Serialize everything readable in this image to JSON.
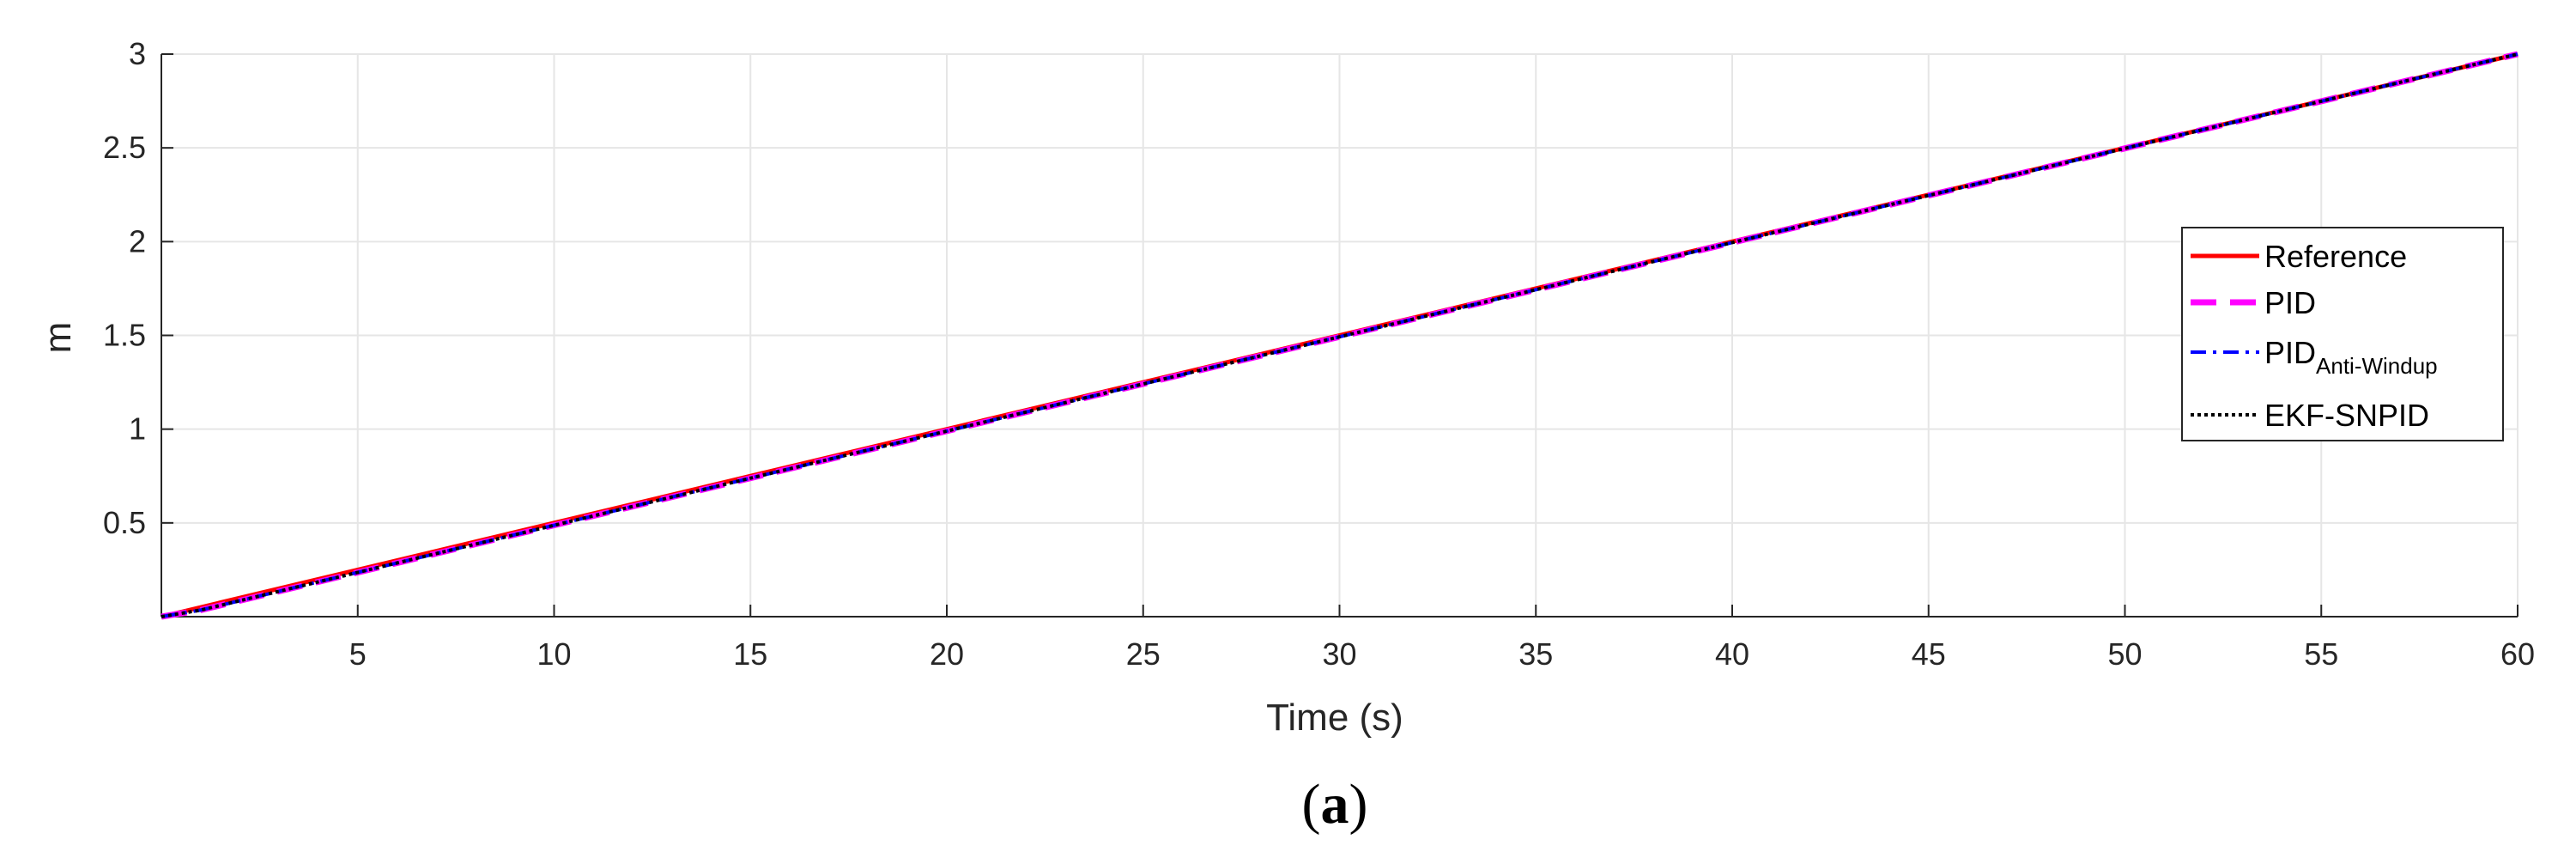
{
  "chart_data": {
    "type": "line",
    "xlabel": "Time (s)",
    "ylabel": "m",
    "xlim": [
      0,
      60
    ],
    "ylim": [
      0,
      3
    ],
    "xticks": [
      5,
      10,
      15,
      20,
      25,
      30,
      35,
      40,
      45,
      50,
      55,
      60
    ],
    "yticks": [
      0.5,
      1,
      1.5,
      2,
      2.5,
      3
    ],
    "grid": true,
    "legend_position": "right",
    "series": [
      {
        "name": "Reference",
        "name_sub": "",
        "color": "#ff0000",
        "style": "solid",
        "x": [
          0,
          60
        ],
        "y": [
          0,
          3
        ]
      },
      {
        "name": "PID",
        "name_sub": "",
        "color": "#ff00ff",
        "style": "dashed",
        "x": [
          0,
          1,
          60
        ],
        "y": [
          0,
          0.035,
          3
        ]
      },
      {
        "name": "PID",
        "name_sub": "Anti-Windup",
        "color": "#0000ff",
        "style": "dashdot",
        "x": [
          0,
          1,
          60
        ],
        "y": [
          0,
          0.035,
          3
        ]
      },
      {
        "name": "EKF-SNPID",
        "name_sub": "",
        "color": "#000000",
        "style": "dotted",
        "x": [
          0,
          1,
          60
        ],
        "y": [
          0,
          0.035,
          3
        ]
      }
    ]
  },
  "caption": {
    "open": "(",
    "letter": "a",
    "close": ")"
  }
}
